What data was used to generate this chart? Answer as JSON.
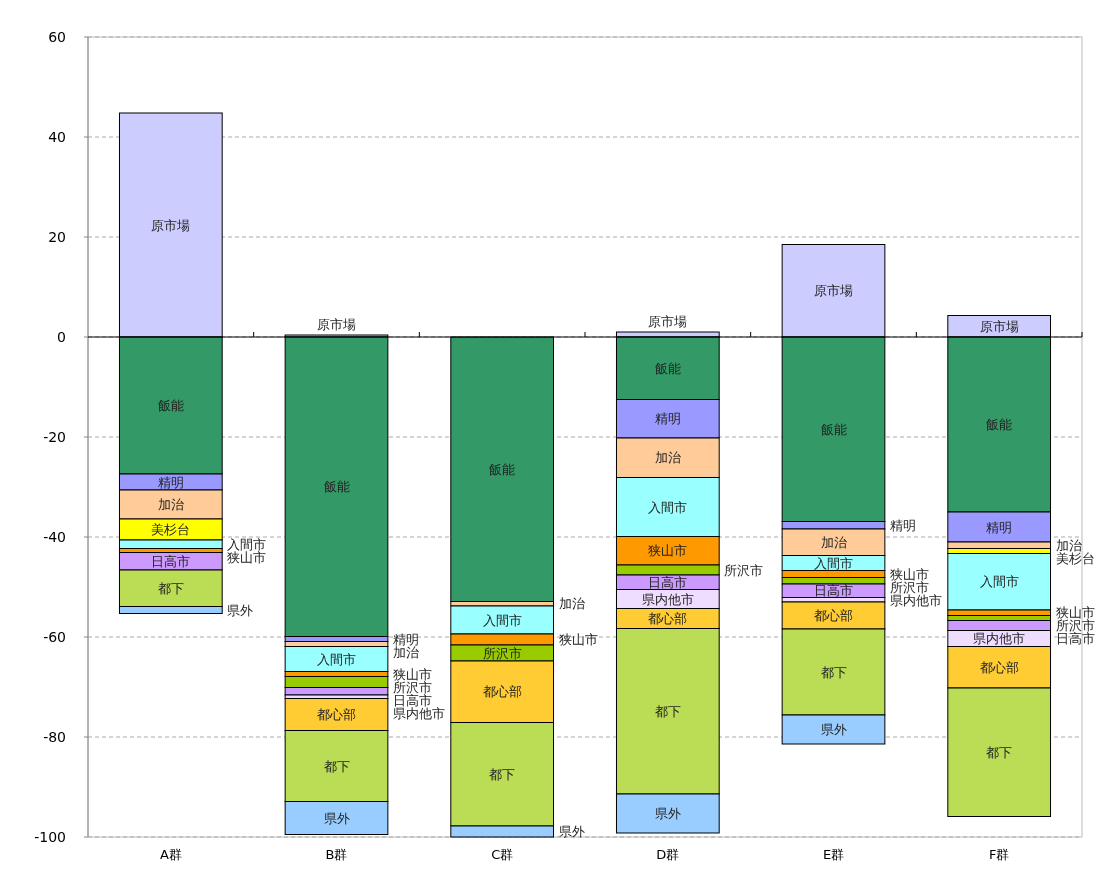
{
  "chart_data": {
    "type": "bar",
    "stacked": true,
    "categories": [
      "A群",
      "B群",
      "C群",
      "D群",
      "E群",
      "F群"
    ],
    "series": [
      {
        "name": "原市場",
        "color": "#ccccff",
        "values": [
          44.8,
          0.4,
          null,
          1.0,
          18.5,
          4.3
        ]
      },
      {
        "name": "飯能",
        "color": "#339966",
        "values": [
          -27.4,
          -59.9,
          -52.9,
          -12.5,
          -36.9,
          -35.0
        ]
      },
      {
        "name": "精明",
        "color": "#9999ff",
        "values": [
          -3.2,
          -1.0,
          null,
          -7.7,
          -1.5,
          -6.0
        ]
      },
      {
        "name": "加治",
        "color": "#ffcc99",
        "values": [
          -5.8,
          -1.0,
          -0.9,
          -7.9,
          -5.3,
          -1.3
        ]
      },
      {
        "name": "美杉台",
        "color": "#ffff00",
        "values": [
          -4.2,
          null,
          null,
          null,
          null,
          -1.0
        ]
      },
      {
        "name": "入間市",
        "color": "#99ffff",
        "values": [
          -1.7,
          -5.0,
          -5.6,
          -11.8,
          -3.0,
          -11.3
        ]
      },
      {
        "name": "狭山市",
        "color": "#ff9900",
        "values": [
          -0.8,
          -1.0,
          -2.2,
          -5.7,
          -1.4,
          -1.1
        ]
      },
      {
        "name": "所沢市",
        "color": "#99cc00",
        "values": [
          null,
          -2.2,
          -3.2,
          -2.0,
          -1.3,
          -1.0
        ]
      },
      {
        "name": "日高市",
        "color": "#cc99ff",
        "values": [
          -3.5,
          -1.5,
          null,
          -2.9,
          -2.7,
          -2.0
        ]
      },
      {
        "name": "県内他市",
        "color": "#eeddff",
        "values": [
          null,
          -0.7,
          null,
          -3.8,
          -0.9,
          -3.2
        ]
      },
      {
        "name": "都心部",
        "color": "#ffcc33",
        "values": [
          null,
          -6.4,
          -12.3,
          -4.0,
          -5.4,
          -8.3
        ]
      },
      {
        "name": "都下",
        "color": "#bbdd55",
        "values": [
          -7.3,
          -14.2,
          -20.7,
          -33.1,
          -17.2,
          -25.7
        ]
      },
      {
        "name": "県外",
        "color": "#99ccff",
        "values": [
          -1.4,
          -6.6,
          -2.2,
          -7.8,
          -5.8,
          null
        ]
      }
    ],
    "ylim": [
      -100,
      60
    ],
    "yticks": [
      -100,
      -80,
      -60,
      -40,
      -20,
      0,
      20,
      40,
      60
    ],
    "grid": "y"
  }
}
